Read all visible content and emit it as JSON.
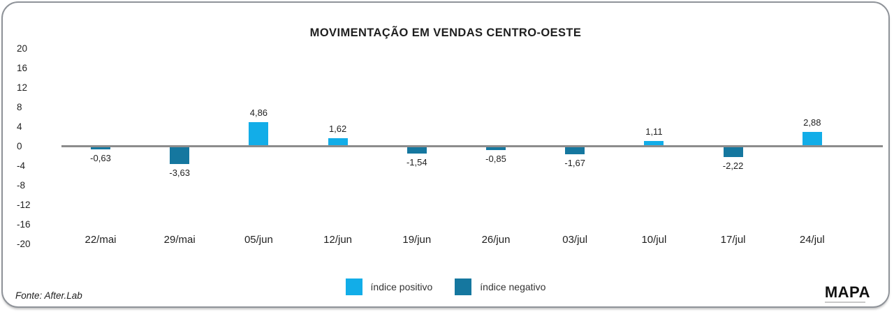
{
  "card": {
    "source": "Fonte: After.Lab",
    "brand": "MAPA"
  },
  "chart_data": {
    "type": "bar",
    "title": "MOVIMENTAÇÃO EM VENDAS CENTRO-OESTE",
    "categories": [
      "22/mai",
      "29/mai",
      "05/jun",
      "12/jun",
      "19/jun",
      "26/jun",
      "03/jul",
      "10/jul",
      "17/jul",
      "24/jul"
    ],
    "values": [
      -0.63,
      -3.63,
      4.86,
      1.62,
      -1.54,
      -0.85,
      -1.67,
      1.11,
      -2.22,
      2.88
    ],
    "value_labels": [
      "-0,63",
      "-3,63",
      "4,86",
      "1,62",
      "-1,54",
      "-0,85",
      "-1,67",
      "1,11",
      "-2,22",
      "2,88"
    ],
    "y_ticks": [
      20,
      16,
      12,
      8,
      4,
      0,
      -4,
      -8,
      -12,
      -16,
      -20
    ],
    "ylim": [
      -20,
      20
    ],
    "xlabel": "",
    "ylabel": "",
    "grid": false,
    "legend_position": "bottom-center",
    "colors": {
      "positive": "#12ADE8",
      "negative": "#15779F",
      "axis_line": "#8C8C8C",
      "text": "#1F1F1F"
    },
    "legend": [
      {
        "key": "positive",
        "label": "índice positivo",
        "color": "#12ADE8"
      },
      {
        "key": "negative",
        "label": "índice negativo",
        "color": "#15779F"
      }
    ]
  }
}
